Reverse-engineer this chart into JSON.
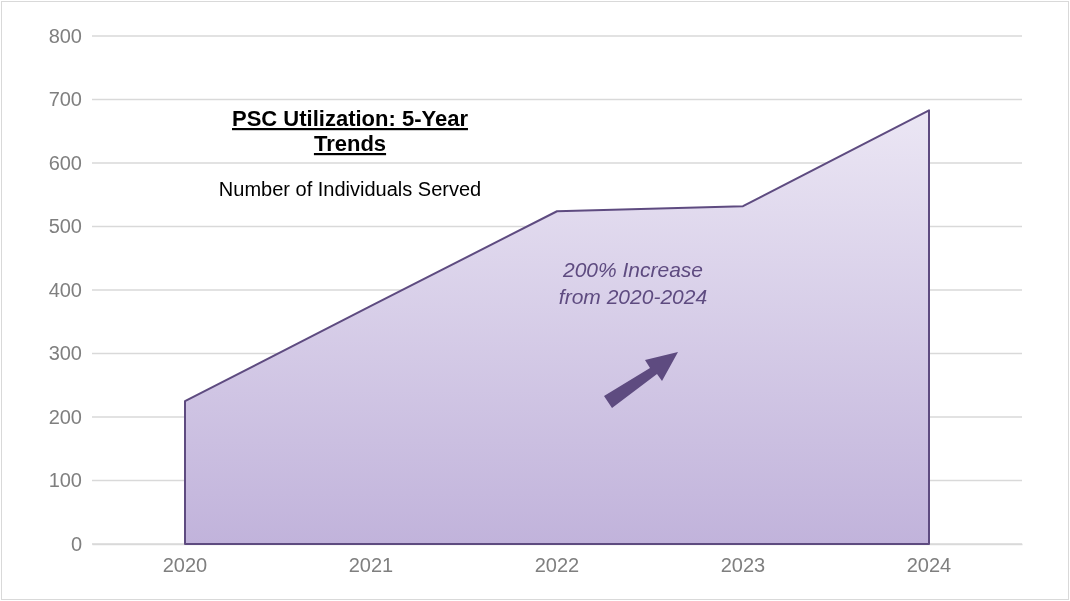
{
  "chart_data": {
    "type": "area",
    "title": "PSC Utilization: 5-Year Trends",
    "subtitle": "Number of Individuals Served",
    "categories": [
      "2020",
      "2021",
      "2022",
      "2023",
      "2024"
    ],
    "series": [
      {
        "color": "#5e4b80",
        "values": [
          225,
          375,
          524,
          532,
          683
        ]
      }
    ],
    "ylim": [
      0,
      800
    ],
    "yticks": [
      0,
      100,
      200,
      300,
      400,
      500,
      600,
      700,
      800
    ],
    "grid": "y",
    "annotations": [
      "200% Increase from 2020-2024"
    ]
  }
}
